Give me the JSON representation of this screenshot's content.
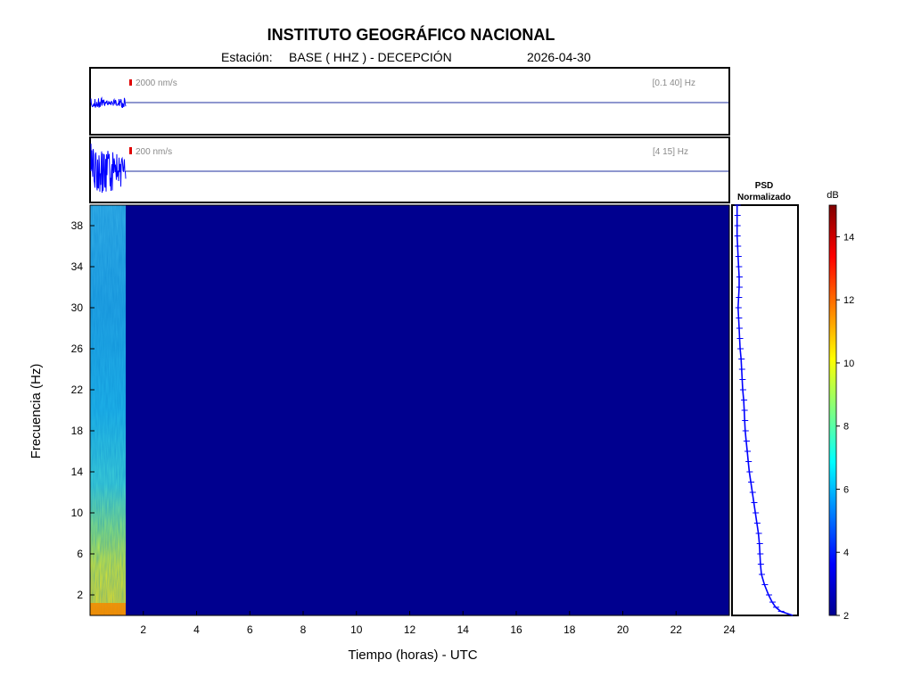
{
  "header": {
    "title": "INSTITUTO GEOGRÁFICO NACIONAL",
    "station_label": "Estación:",
    "station": "BASE ( HHZ ) - DECEPCIÓN",
    "date": "2026-04-30"
  },
  "colors": {
    "trace": "#0000ff",
    "flatline": "#1f2f9f",
    "scale_bar": "#e00000",
    "spectrogram_background": "#00008f"
  },
  "chart_data": [
    {
      "type": "line",
      "name": "seismogram-broadband",
      "scale_label": "2000 nm/s",
      "filter_label": "[0.1 40] Hz",
      "x_range": [
        0,
        24
      ],
      "active_until_hours": 1.35
    },
    {
      "type": "line",
      "name": "seismogram-filtered",
      "scale_label": "200 nm/s",
      "filter_label": "[4 15] Hz",
      "x_range": [
        0,
        24
      ],
      "active_until_hours": 1.35
    },
    {
      "type": "heatmap",
      "name": "spectrogram",
      "xlabel": "Tiempo (horas) - UTC",
      "ylabel": "Frecuencia  (Hz)",
      "xlim": [
        0,
        24
      ],
      "ylim": [
        0,
        40
      ],
      "x_ticks": [
        2,
        4,
        6,
        8,
        10,
        12,
        14,
        16,
        18,
        20,
        22,
        24
      ],
      "y_ticks": [
        2,
        6,
        10,
        14,
        18,
        22,
        26,
        30,
        34,
        38
      ],
      "data_until_hours": 1.35
    },
    {
      "type": "line",
      "name": "psd",
      "title_line1": "PSD",
      "title_line2": "Normalizado",
      "ylim": [
        0,
        40
      ],
      "xlim": [
        2,
        15
      ],
      "points": [
        [
          14.0,
          0
        ],
        [
          11.6,
          0.4
        ],
        [
          10.6,
          0.8
        ],
        [
          9.9,
          1.3
        ],
        [
          9.2,
          2.0
        ],
        [
          8.4,
          3.0
        ],
        [
          7.8,
          4.0
        ],
        [
          7.6,
          5.0
        ],
        [
          7.5,
          6.0
        ],
        [
          7.4,
          7.0
        ],
        [
          7.2,
          8.0
        ],
        [
          6.9,
          9.0
        ],
        [
          6.6,
          10.0
        ],
        [
          6.3,
          11.0
        ],
        [
          6.0,
          12.0
        ],
        [
          5.7,
          13.0
        ],
        [
          5.4,
          14.0
        ],
        [
          5.2,
          15.0
        ],
        [
          5.0,
          16.0
        ],
        [
          4.8,
          17.0
        ],
        [
          4.6,
          18.0
        ],
        [
          4.5,
          19.0
        ],
        [
          4.4,
          20.0
        ],
        [
          4.3,
          21.0
        ],
        [
          4.1,
          22.0
        ],
        [
          4.0,
          23.0
        ],
        [
          3.9,
          24.0
        ],
        [
          3.8,
          25.0
        ],
        [
          3.6,
          26.0
        ],
        [
          3.5,
          27.0
        ],
        [
          3.4,
          28.0
        ],
        [
          3.3,
          29.0
        ],
        [
          3.2,
          30.0
        ],
        [
          3.3,
          31.0
        ],
        [
          3.4,
          32.0
        ],
        [
          3.4,
          33.0
        ],
        [
          3.3,
          34.0
        ],
        [
          3.2,
          35.0
        ],
        [
          3.1,
          36.0
        ],
        [
          3.0,
          37.0
        ],
        [
          3.0,
          38.0
        ],
        [
          3.0,
          39.0
        ],
        [
          3.0,
          40.0
        ]
      ]
    },
    {
      "type": "colorbar",
      "name": "colorbar",
      "unit": "dB",
      "range": [
        2,
        15
      ],
      "ticks": [
        2,
        4,
        6,
        8,
        10,
        12,
        14
      ]
    }
  ]
}
